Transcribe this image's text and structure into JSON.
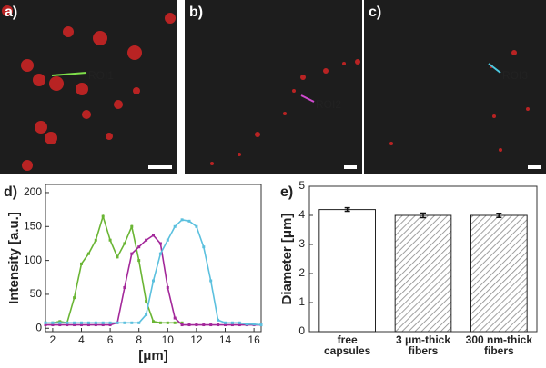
{
  "panels": [
    {
      "label": "a)",
      "roi": "ROI1",
      "color": "#7fe04a"
    },
    {
      "label": "b)",
      "roi": "ROI2",
      "color": "#d04ad0"
    },
    {
      "label": "c)",
      "roi": "ROI3",
      "color": "#4ac8e0"
    }
  ],
  "chart_data": [
    {
      "type": "line",
      "panel_label": "d)",
      "y_label": "Intensity [a.u.]",
      "x_label": "[μm]",
      "x": [
        1.5,
        2,
        2.5,
        3,
        3.5,
        4,
        4.5,
        5,
        5.5,
        6,
        6.5,
        7,
        7.5,
        8,
        8.5,
        9,
        9.5,
        10,
        10.5,
        11,
        11.5,
        12,
        12.5,
        13,
        13.5,
        14,
        14.5,
        15,
        15.5,
        16,
        16.5
      ],
      "series": [
        {
          "color": "#6ab534",
          "values": [
            8,
            8,
            10,
            8,
            45,
            95,
            110,
            130,
            165,
            130,
            105,
            125,
            150,
            100,
            40,
            10,
            8,
            8,
            8,
            8,
            null,
            null,
            null,
            null,
            null,
            null,
            null,
            null,
            null,
            null,
            null
          ]
        },
        {
          "color": "#a3289a",
          "values": [
            5,
            5,
            5,
            5,
            5,
            5,
            5,
            5,
            5,
            5,
            8,
            60,
            110,
            120,
            130,
            137,
            125,
            60,
            15,
            5,
            5,
            5,
            5,
            5,
            5,
            5,
            5,
            5,
            5,
            5,
            5
          ]
        },
        {
          "color": "#5bc0de",
          "values": [
            8,
            8,
            8,
            8,
            8,
            8,
            8,
            8,
            8,
            8,
            8,
            8,
            8,
            8,
            20,
            70,
            110,
            130,
            150,
            160,
            158,
            150,
            120,
            70,
            12,
            8,
            8,
            8,
            6,
            6,
            5
          ]
        }
      ],
      "xlim": [
        1.5,
        16.5
      ],
      "xticks": [
        2,
        4,
        6,
        8,
        10,
        12,
        14,
        16
      ],
      "ylim": [
        -5,
        212
      ],
      "yticks": [
        0,
        50,
        100,
        150,
        200
      ]
    },
    {
      "type": "bar",
      "panel_label": "e)",
      "y_label": "Diameter [μm]",
      "categories": [
        [
          "free",
          "capsules"
        ],
        [
          "3 μm-thick",
          "fibers"
        ],
        [
          "300 nm-thick",
          "fibers"
        ]
      ],
      "values": [
        4.2,
        4.0,
        4.0
      ],
      "errors": [
        0.06,
        0.08,
        0.07
      ],
      "hatch": [
        false,
        true,
        true
      ],
      "ylim": [
        0,
        5
      ],
      "yticks": [
        0,
        1,
        2,
        3,
        4,
        5
      ]
    }
  ]
}
